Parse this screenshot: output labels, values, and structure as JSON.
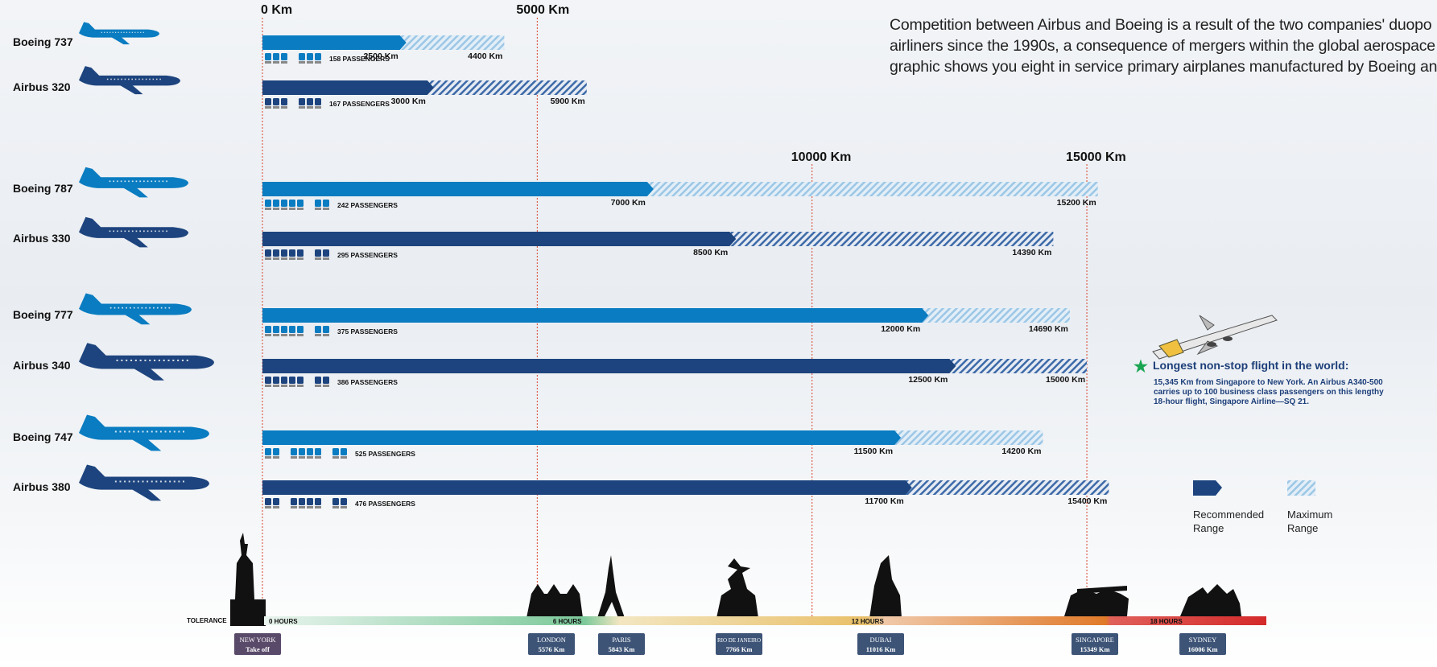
{
  "intro_lines": [
    "Competition between Airbus and Boeing is a result of the two companies' duopo",
    "airliners since the 1990s, a consequence of mergers within the global aerospace",
    "graphic shows you eight in service primary airplanes manufactured by Boeing an"
  ],
  "chart_data": {
    "type": "bar",
    "unit": "Km",
    "axis_labels": [
      {
        "value": 0,
        "label": "0 Km"
      },
      {
        "value": 5000,
        "label": "5000 Km"
      },
      {
        "value": 10000,
        "label": "10000 Km"
      },
      {
        "value": 15000,
        "label": "15000 Km"
      }
    ],
    "aircraft": [
      {
        "name": "Boeing 737",
        "maker": "Boeing",
        "recommended": 2500,
        "recommended_label": "2500 Km",
        "maximum": 4400,
        "maximum_label": "4400 Km",
        "passengers": 158,
        "passengers_label": "158 PASSENGERS"
      },
      {
        "name": "Airbus 320",
        "maker": "Airbus",
        "recommended": 3000,
        "recommended_label": "3000 Km",
        "maximum": 5900,
        "maximum_label": "5900 Km",
        "passengers": 167,
        "passengers_label": "167 PASSENGERS"
      },
      {
        "name": "Boeing 787",
        "maker": "Boeing",
        "recommended": 7000,
        "recommended_label": "7000 Km",
        "maximum": 15200,
        "maximum_label": "15200 Km",
        "passengers": 242,
        "passengers_label": "242 PASSENGERS"
      },
      {
        "name": "Airbus 330",
        "maker": "Airbus",
        "recommended": 8500,
        "recommended_label": "8500 Km",
        "maximum": 14390,
        "maximum_label": "14390 Km",
        "passengers": 295,
        "passengers_label": "295 PASSENGERS"
      },
      {
        "name": "Boeing 777",
        "maker": "Boeing",
        "recommended": 12000,
        "recommended_label": "12000 Km",
        "maximum": 14690,
        "maximum_label": "14690 Km",
        "passengers": 375,
        "passengers_label": "375 PASSENGERS"
      },
      {
        "name": "Airbus 340",
        "maker": "Airbus",
        "recommended": 12500,
        "recommended_label": "12500 Km",
        "maximum": 15000,
        "maximum_label": "15000 Km",
        "passengers": 386,
        "passengers_label": "386 PASSENGERS"
      },
      {
        "name": "Boeing 747",
        "maker": "Boeing",
        "recommended": 11500,
        "recommended_label": "11500 Km",
        "maximum": 14200,
        "maximum_label": "14200 Km",
        "passengers": 525,
        "passengers_label": "525 PASSENGERS"
      },
      {
        "name": "Airbus 380",
        "maker": "Airbus",
        "recommended": 11700,
        "recommended_label": "11700 Km",
        "maximum": 15400,
        "maximum_label": "15400 Km",
        "passengers": 476,
        "passengers_label": "476 PASSENGERS"
      }
    ],
    "tolerance": {
      "label": "TOLERANCE",
      "max_hours": 20,
      "hour_marks": [
        {
          "hours": 0,
          "label": "0 HOURS"
        },
        {
          "hours": 6,
          "label": "6 HOURS"
        },
        {
          "hours": 12,
          "label": "12 HOURS"
        },
        {
          "hours": 18,
          "label": "18 HOURS"
        }
      ]
    },
    "cities": [
      {
        "name": "NEW YORK",
        "detail": "Take off",
        "distance": 0
      },
      {
        "name": "LONDON",
        "detail": "5576 Km",
        "distance": 5576
      },
      {
        "name": "PARIS",
        "detail": "5843 Km",
        "distance": 5843
      },
      {
        "name": "RIO DE JANEIRO",
        "detail": "7766 Km",
        "distance": 7766
      },
      {
        "name": "DUBAI",
        "detail": "11016 Km",
        "distance": 11016
      },
      {
        "name": "SINGAPORE",
        "detail": "15349 Km",
        "distance": 15349
      },
      {
        "name": "SYDNEY",
        "detail": "16006 Km",
        "distance": 16006
      }
    ],
    "legend": [
      {
        "label_lines": [
          "Recommended",
          "Range"
        ],
        "style": "solid"
      },
      {
        "label_lines": [
          "Maximum",
          "Range"
        ],
        "style": "hatched"
      }
    ],
    "colors": {
      "boeing": "#0a7cc1",
      "airbus": "#1d447e",
      "hatch_boeing": "#9cc7e6",
      "hatch_airbus": "#3d6aa8",
      "guide": "#d9432c",
      "city_box": "#3d5477",
      "new_york_box": "#5a4a6a",
      "star": "#1aa552",
      "note_text": "#1d3f7a"
    }
  },
  "note": {
    "title": "Longest non-stop flight in the world:",
    "body_lines": [
      "15,345 Km from Singapore to New York. An Airbus A340-500",
      "carries up to 100 business class passengers on this lengthy",
      "18-hour flight, Singapore Airline—SQ 21."
    ]
  }
}
